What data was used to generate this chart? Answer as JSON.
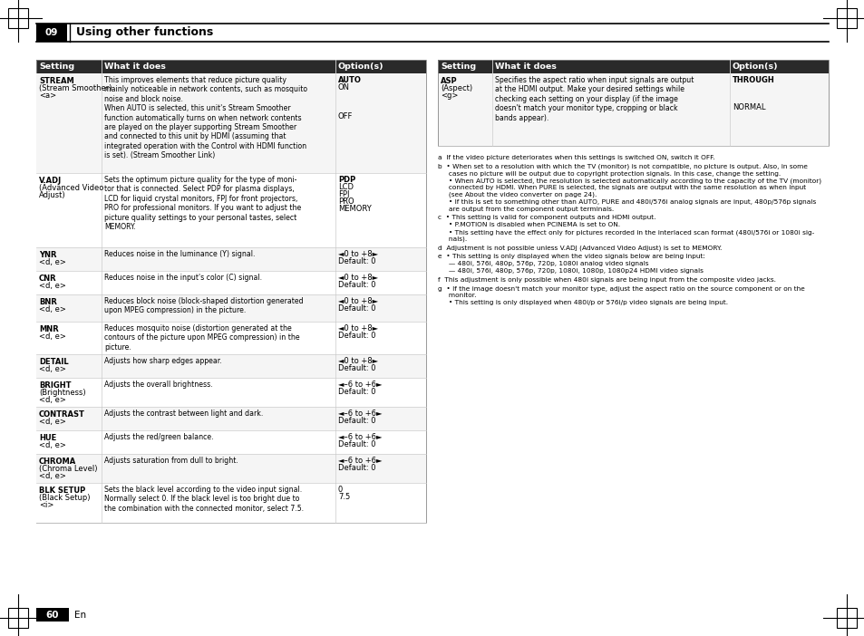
{
  "page_bg": "#ffffff",
  "section_number": "09",
  "section_title": "Using other functions",
  "page_number": "60",
  "page_label": "En",
  "col_headers": [
    "Setting",
    "What it does",
    "Option(s)"
  ],
  "left_table_rows": [
    {
      "setting": "STREAM\n(Stream Smoother)\n<a>",
      "what_it_does": "This improves elements that reduce picture quality\nmainly noticeable in network contents, such as mosquito\nnoise and block noise.\nWhen AUTO is selected, this unit's Stream Smoother\nfunction automatically turns on when network contents\nare played on the player supporting Stream Smoother\nand connected to this unit by HDMI (assuming that\nintegrated operation with the Control with HDMI function\nis set). (Stream Smoother Link)",
      "options": "AUTO\nON\n\n\n\nOFF",
      "opt_bold": [
        0
      ]
    },
    {
      "setting": "V.ADJ\n(Advanced Video\nAdjust)",
      "what_it_does": "Sets the optimum picture quality for the type of moni-\ntor that is connected. Select PDP for plasma displays,\nLCD for liquid crystal monitors, FPJ for front projectors,\nPRO for professional monitors. If you want to adjust the\npicture quality settings to your personal tastes, select\nMEMORY.",
      "options": "PDP\nLCD\nFPJ\nPRO\nMEMORY",
      "opt_bold": [
        0
      ]
    },
    {
      "setting": "YNR\n<d, e>",
      "what_it_does": "Reduces noise in the luminance (Y) signal.",
      "options": "◄0 to +8►\nDefault: 0",
      "opt_bold": []
    },
    {
      "setting": "CNR\n<d, e>",
      "what_it_does": "Reduces noise in the input's color (C) signal.",
      "options": "◄0 to +8►\nDefault: 0",
      "opt_bold": []
    },
    {
      "setting": "BNR\n<d, e>",
      "what_it_does": "Reduces block noise (block-shaped distortion generated\nupon MPEG compression) in the picture.",
      "options": "◄0 to +8►\nDefault: 0",
      "opt_bold": []
    },
    {
      "setting": "MNR\n<d, e>",
      "what_it_does": "Reduces mosquito noise (distortion generated at the\ncontours of the picture upon MPEG compression) in the\npicture.",
      "options": "◄0 to +8►\nDefault: 0",
      "opt_bold": []
    },
    {
      "setting": "DETAIL\n<d, e>",
      "what_it_does": "Adjusts how sharp edges appear.",
      "options": "◄0 to +8►\nDefault: 0",
      "opt_bold": []
    },
    {
      "setting": "BRIGHT\n(Brightness)\n<d, e>",
      "what_it_does": "Adjusts the overall brightness.",
      "options": "◄–6 to +6►\nDefault: 0",
      "opt_bold": []
    },
    {
      "setting": "CONTRAST\n<d, e>",
      "what_it_does": "Adjusts the contrast between light and dark.",
      "options": "◄–6 to +6►\nDefault: 0",
      "opt_bold": []
    },
    {
      "setting": "HUE\n<d, e>",
      "what_it_does": "Adjusts the red/green balance.",
      "options": "◄–6 to +6►\nDefault: 0",
      "opt_bold": []
    },
    {
      "setting": "CHROMA\n(Chroma Level)\n<d, e>",
      "what_it_does": "Adjusts saturation from dull to bright.",
      "options": "◄–6 to +6►\nDefault: 0",
      "opt_bold": []
    },
    {
      "setting": "BLK SETUP\n(Black Setup)\n<i>",
      "what_it_does": "Sets the black level according to the video input signal.\nNormally select 0. If the black level is too bright due to\nthe combination with the connected monitor, select 7.5.",
      "options": "0\n7.5",
      "opt_bold": []
    }
  ],
  "left_row_heights": [
    110,
    82,
    26,
    26,
    30,
    36,
    26,
    32,
    26,
    26,
    32,
    44
  ],
  "right_table_rows": [
    {
      "setting": "ASP\n(Aspect)\n<g>",
      "what_it_does": "Specifies the aspect ratio when input signals are output\nat the HDMI output. Make your desired settings while\nchecking each setting on your display (if the image\ndoesn't match your monitor type, cropping or black\nbands appear).",
      "options": "THROUGH\n\n\nNORMAL",
      "opt_bold": [
        0
      ]
    }
  ],
  "right_row_heights": [
    80
  ],
  "footnotes": [
    "a  If the video picture deteriorates when this settings is switched ON, switch it OFF.",
    "b  • When set to a resolution with which the TV (monitor) is not compatible, no picture is output. Also, in some\n     cases no picture will be output due to copyright protection signals. In this case, change the setting.\n     • When AUTO is selected, the resolution is selected automatically according to the capacity of the TV (monitor)\n     connected by HDMI. When PURE is selected, the signals are output with the same resolution as when input\n     (see About the video converter on page 24).\n     • If this is set to something other than AUTO, PURE and 480i/576i analog signals are input, 480p/576p signals\n     are output from the component output terminals.",
    "c  • This setting is valid for component outputs and HDMI output.\n     • P.MOTION is disabled when PCINEMA is set to ON.\n     • This setting have the effect only for pictures recorded in the interlaced scan format (480i/576i or 1080i sig-\n     nals).",
    "d  Adjustment is not possible unless V.ADJ (Advanced Video Adjust) is set to MEMORY.",
    "e  • This setting is only displayed when the video signals below are being input:\n     — 480i, 576i, 480p, 576p, 720p, 1080i analog video signals\n     — 480i, 576i, 480p, 576p, 720p, 1080i, 1080p, 1080p24 HDMI video signals",
    "f  This adjustment is only possible when 480i signals are being input from the composite video jacks.",
    "g  • If the image doesn't match your monitor type, adjust the aspect ratio on the source component or on the\n     monitor.\n     • This setting is only displayed when 480i/p or 576i/p video signals are being input."
  ]
}
